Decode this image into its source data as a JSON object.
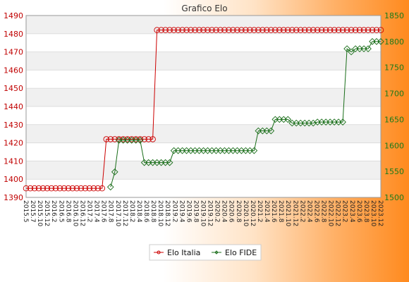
{
  "chart_data": {
    "type": "line",
    "title": "Grafico Elo",
    "y_left": {
      "lim": [
        1390,
        1490
      ],
      "ticks": [
        1390,
        1400,
        1410,
        1420,
        1430,
        1440,
        1450,
        1460,
        1470,
        1480,
        1490
      ],
      "color": "#c00000"
    },
    "y_right": {
      "lim": [
        1500,
        1850
      ],
      "ticks": [
        1500,
        1550,
        1600,
        1650,
        1700,
        1750,
        1800,
        1850
      ],
      "color": "#1a7a1a"
    },
    "n_points": 85,
    "series": [
      {
        "name": "Elo Italia",
        "axis": "left",
        "color": "#cc0000",
        "x": [
          0,
          1,
          2,
          3,
          4,
          5,
          6,
          7,
          8,
          9,
          10,
          11,
          12,
          13,
          14,
          15,
          16,
          17,
          18,
          19,
          20,
          21,
          22,
          23,
          24,
          25,
          26,
          27,
          28,
          29,
          30,
          31,
          32,
          33,
          34,
          35,
          36,
          37,
          38,
          39,
          40,
          41,
          42,
          43,
          44,
          45,
          46,
          47,
          48,
          49,
          50,
          51,
          52,
          53,
          54,
          55,
          56,
          57,
          58,
          59,
          60,
          61,
          62,
          63,
          64,
          65,
          66,
          67,
          68,
          69,
          70,
          71,
          72,
          73,
          74,
          75,
          76,
          77,
          78,
          79,
          80,
          81,
          82,
          83,
          84
        ],
        "values": [
          1395,
          1395,
          1395,
          1395,
          1395,
          1395,
          1395,
          1395,
          1395,
          1395,
          1395,
          1395,
          1395,
          1395,
          1395,
          1395,
          1395,
          1395,
          1395,
          1422,
          1422,
          1422,
          1422,
          1422,
          1422,
          1422,
          1422,
          1422,
          1422,
          1422,
          1422,
          1482,
          1482,
          1482,
          1482,
          1482,
          1482,
          1482,
          1482,
          1482,
          1482,
          1482,
          1482,
          1482,
          1482,
          1482,
          1482,
          1482,
          1482,
          1482,
          1482,
          1482,
          1482,
          1482,
          1482,
          1482,
          1482,
          1482,
          1482,
          1482,
          1482,
          1482,
          1482,
          1482,
          1482,
          1482,
          1482,
          1482,
          1482,
          1482,
          1482,
          1482,
          1482,
          1482,
          1482,
          1482,
          1482,
          1482,
          1482,
          1482,
          1482,
          1482,
          1482,
          1482,
          1482
        ]
      },
      {
        "name": "Elo FIDE",
        "axis": "right",
        "color": "#1a6e1a",
        "x": [
          20,
          21,
          22,
          23,
          24,
          25,
          26,
          27,
          28,
          29,
          30,
          31,
          32,
          33,
          34,
          35,
          36,
          37,
          38,
          39,
          40,
          41,
          42,
          43,
          44,
          45,
          46,
          47,
          48,
          49,
          50,
          51,
          52,
          53,
          54,
          55,
          56,
          57,
          58,
          59,
          60,
          61,
          62,
          63,
          64,
          65,
          66,
          67,
          68,
          69,
          70,
          71,
          72,
          73,
          74,
          75,
          76,
          77,
          78,
          79,
          80,
          81,
          82,
          83,
          84
        ],
        "values": [
          1520,
          1549,
          1610,
          1610,
          1610,
          1610,
          1610,
          1610,
          1567,
          1567,
          1567,
          1567,
          1567,
          1567,
          1567,
          1590,
          1590,
          1590,
          1590,
          1590,
          1590,
          1590,
          1590,
          1590,
          1590,
          1590,
          1590,
          1590,
          1590,
          1590,
          1590,
          1590,
          1590,
          1590,
          1590,
          1628,
          1628,
          1628,
          1628,
          1650,
          1650,
          1650,
          1650,
          1643,
          1643,
          1643,
          1643,
          1643,
          1643,
          1645,
          1645,
          1645,
          1645,
          1645,
          1645,
          1645,
          1786,
          1780,
          1786,
          1786,
          1786,
          1786,
          1800,
          1800,
          1800
        ],
        "note_ignore": ""
      }
    ],
    "x_tick_labels": [
      "2015.5",
      "2015.7",
      "2015.10",
      "2015.12",
      "2016.2",
      "2016.5",
      "2016.8",
      "2016.10",
      "2016.12",
      "2017.2",
      "2017.4",
      "2017.6",
      "2017.8",
      "2017.10",
      "2017.12",
      "2018.2",
      "2018.4",
      "2018.6",
      "2018.8",
      "2018.10",
      "2018.12",
      "2019.2",
      "2019.4",
      "2019.6",
      "2019.8",
      "2019.10",
      "2019.12",
      "2020.2",
      "2020.4",
      "2020.6",
      "2020.8",
      "2020.10",
      "2020.12",
      "2021.2",
      "2021.4",
      "2021.6",
      "2021.8",
      "2021.10",
      "2021.12",
      "2022.2",
      "2022.4",
      "2022.6",
      "2022.8",
      "2022.10",
      "2022.12",
      "2023.2",
      "2023.4",
      "2023.6",
      "2023.8",
      "2023.10",
      "2023.12"
    ],
    "legend": {
      "placement": "bottom",
      "items": [
        "Elo Italia",
        "Elo FIDE"
      ]
    },
    "grid": true
  }
}
